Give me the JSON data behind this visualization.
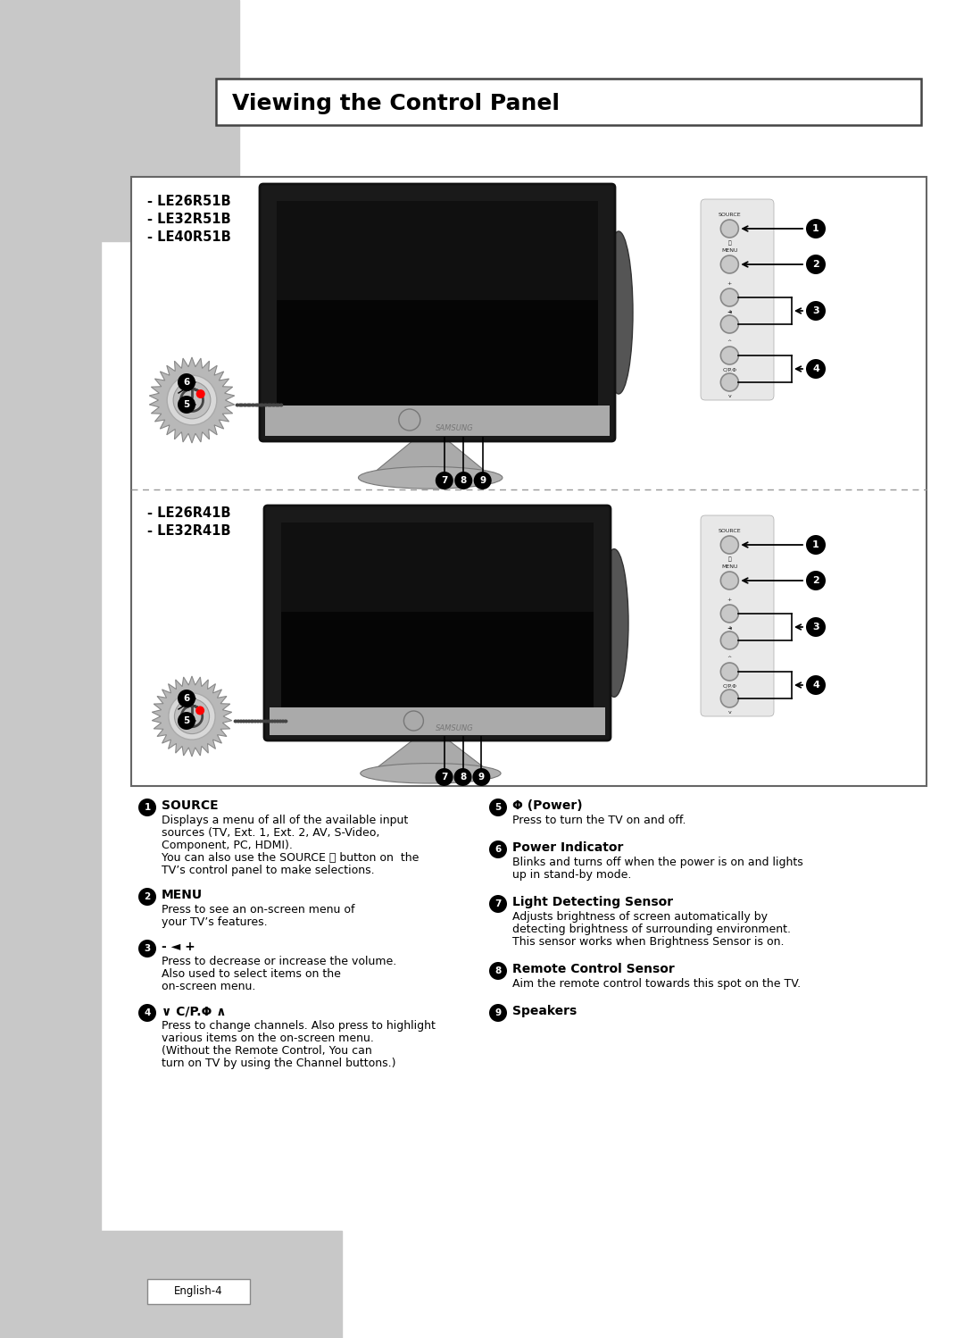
{
  "title_text": "Viewing the Control Panel",
  "bg_color": "#ffffff",
  "gray_sidebar_color": "#c8c8c8",
  "model_group1": [
    "- LE26R51B",
    "- LE32R51B",
    "- LE40R51B"
  ],
  "model_group2": [
    "- LE26R41B",
    "- LE32R41B"
  ],
  "descriptions": [
    {
      "num": "1",
      "heading": "SOURCE",
      "heading_extra": "⬜",
      "body": "Displays a menu of all of the available input\nsources (TV, Ext. 1, Ext. 2, AV, S-Video,\nComponent, PC, HDMI).\nYou can also use the SOURCE ⬜ button on  the\nTV’s control panel to make selections."
    },
    {
      "num": "2",
      "heading": "MENU",
      "heading_extra": "",
      "body": "Press to see an on-screen menu of\nyour TV’s features."
    },
    {
      "num": "3",
      "heading": "- ◄ +",
      "heading_extra": "",
      "body": "Press to decrease or increase the volume.\nAlso used to select items on the\non-screen menu."
    },
    {
      "num": "4",
      "heading": "∨ C/P.Φ ∧",
      "heading_extra": "",
      "body": "Press to change channels. Also press to highlight\nvarious items on the on-screen menu.\n(Without the Remote Control, You can\nturn on TV by using the Channel buttons.)"
    },
    {
      "num": "5",
      "heading": "Φ (Power)",
      "heading_extra": "",
      "body": "Press to turn the TV on and off."
    },
    {
      "num": "6",
      "heading": "Power Indicator",
      "heading_extra": "",
      "body": "Blinks and turns off when the power is on and lights\nup in stand-by mode."
    },
    {
      "num": "7",
      "heading": "Light Detecting Sensor",
      "heading_extra": "",
      "body": "Adjusts brightness of screen automatically by\ndetecting brightness of surrounding environment.\nThis sensor works when Brightness Sensor is on."
    },
    {
      "num": "8",
      "heading": "Remote Control Sensor",
      "heading_extra": "",
      "body": "Aim the remote control towards this spot on the TV."
    },
    {
      "num": "9",
      "heading": "Speakers",
      "heading_extra": "",
      "body": ""
    }
  ],
  "footer": "English-4"
}
